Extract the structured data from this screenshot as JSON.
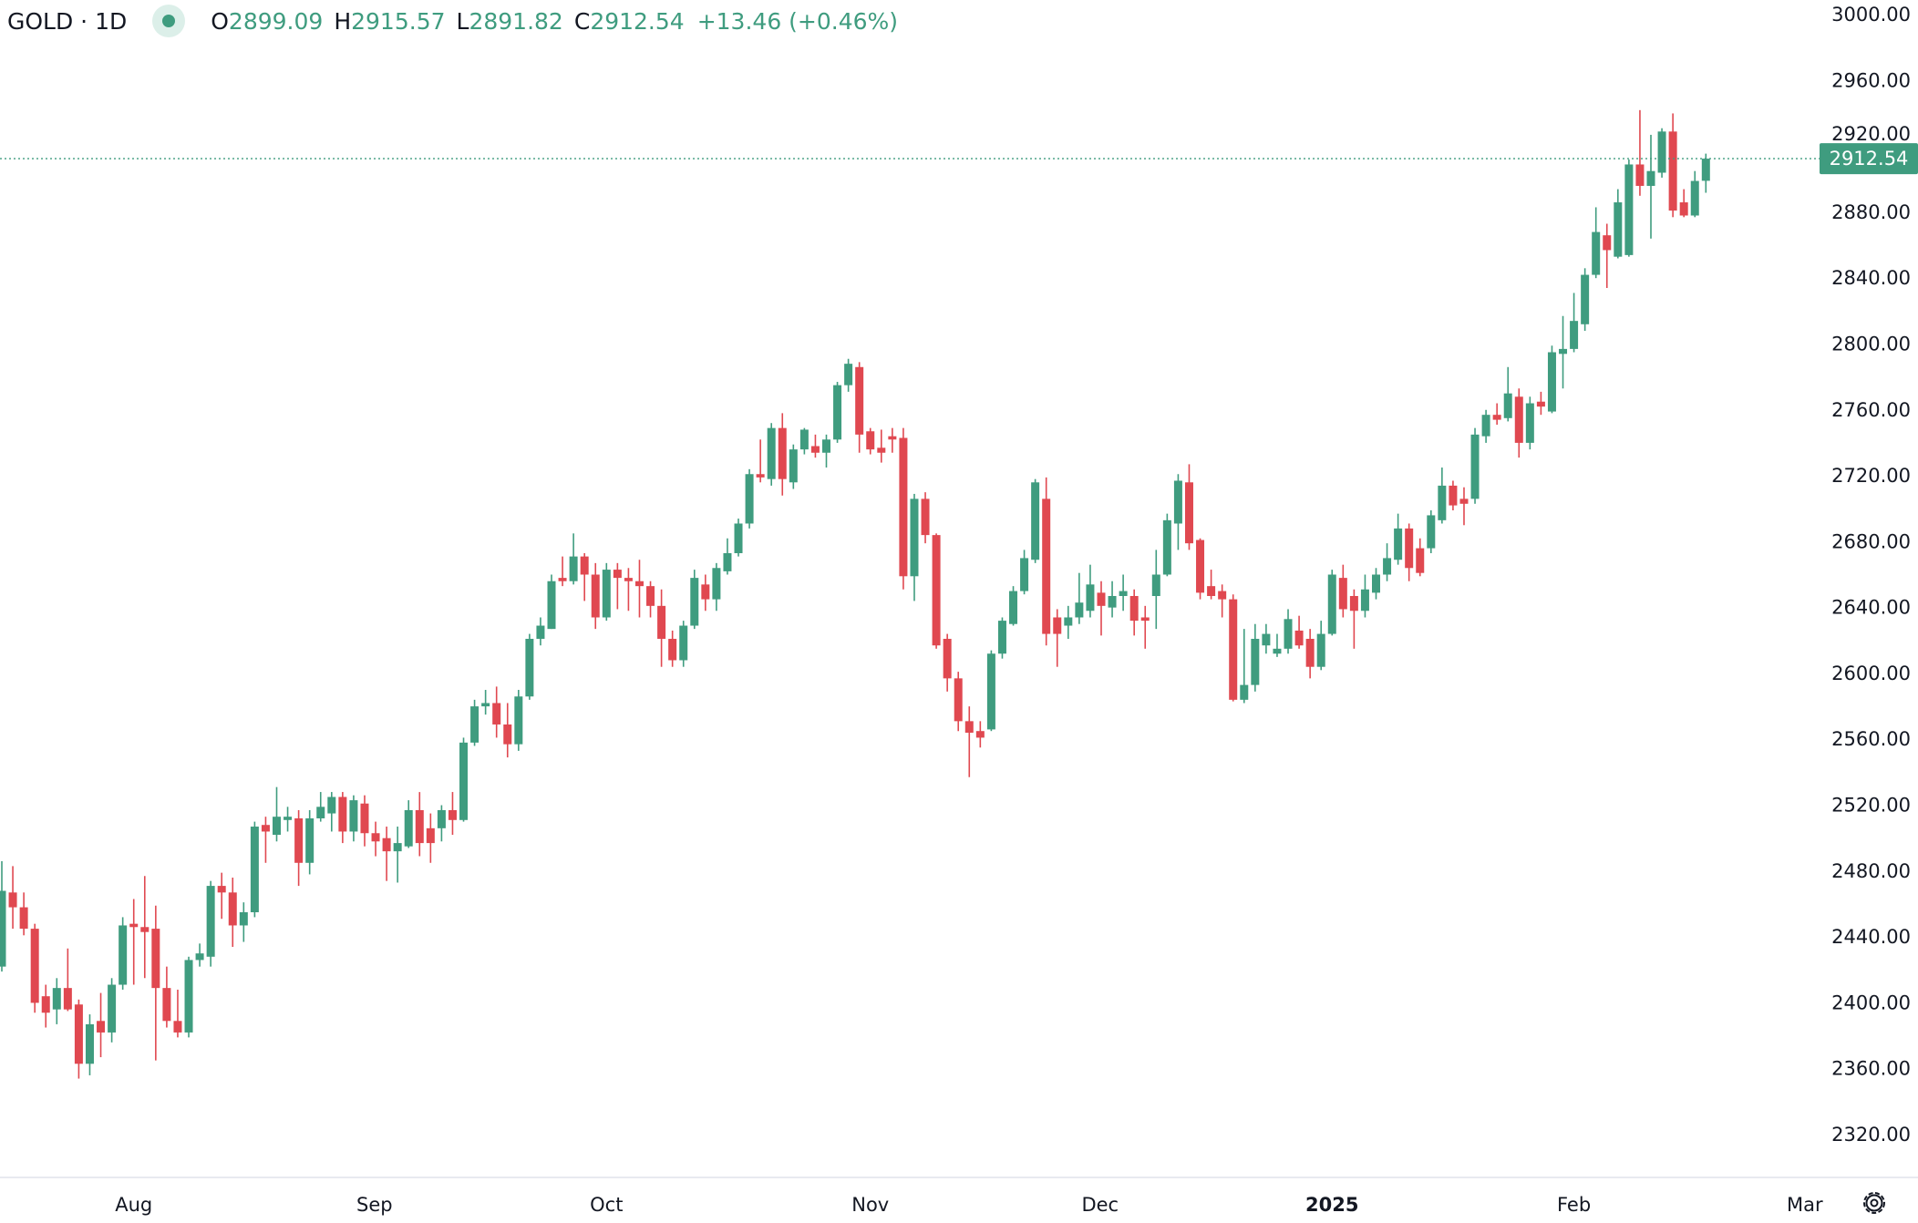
{
  "header": {
    "symbol": "GOLD · 1D",
    "open_label": "O",
    "open": "2899.09",
    "high_label": "H",
    "high": "2915.57",
    "low_label": "L",
    "low": "2891.82",
    "close_label": "C",
    "close": "2912.54",
    "change": "+13.46 (+0.46%)",
    "status_icon": "market-open-dot-icon"
  },
  "colors": {
    "up": "#3f9c7f",
    "down": "#e04850",
    "last_price_bg": "#3f9c7f",
    "grid_text": "#131722"
  },
  "settings_icon": "settings-icon",
  "chart_data": {
    "type": "candlestick",
    "title": "",
    "ylim": [
      2300,
      3010
    ],
    "grid": false,
    "y_ticks": [
      "2320.00",
      "2360.00",
      "2400.00",
      "2440.00",
      "2480.00",
      "2520.00",
      "2560.00",
      "2600.00",
      "2640.00",
      "2680.00",
      "2720.00",
      "2760.00",
      "2800.00",
      "2840.00",
      "2880.00",
      "2920.00",
      "2960.00",
      "3000.00"
    ],
    "x_ticks": [
      "Aug",
      "Sep",
      "Oct",
      "Nov",
      "Dec",
      "2025",
      "Feb",
      "Mar"
    ],
    "last_price": "2912.54",
    "ohlc_fields": [
      "open",
      "high",
      "low",
      "close"
    ],
    "candles": [
      [
        2422,
        2486,
        2419,
        2468
      ],
      [
        2467,
        2483,
        2445,
        2458
      ],
      [
        2458,
        2467,
        2441,
        2445
      ],
      [
        2445,
        2448,
        2394,
        2400
      ],
      [
        2404,
        2411,
        2385,
        2394
      ],
      [
        2396,
        2415,
        2387,
        2409
      ],
      [
        2409,
        2433,
        2395,
        2396
      ],
      [
        2399,
        2402,
        2354,
        2363
      ],
      [
        2363,
        2393,
        2356,
        2387
      ],
      [
        2389,
        2406,
        2367,
        2382
      ],
      [
        2382,
        2415,
        2376,
        2411
      ],
      [
        2411,
        2452,
        2408,
        2447
      ],
      [
        2448,
        2463,
        2411,
        2446
      ],
      [
        2446,
        2477,
        2415,
        2443
      ],
      [
        2445,
        2459,
        2365,
        2409
      ],
      [
        2409,
        2422,
        2385,
        2389
      ],
      [
        2389,
        2408,
        2379,
        2382
      ],
      [
        2382,
        2428,
        2379,
        2426
      ],
      [
        2426,
        2436,
        2422,
        2430
      ],
      [
        2428,
        2474,
        2422,
        2471
      ],
      [
        2471,
        2479,
        2451,
        2467
      ],
      [
        2467,
        2476,
        2434,
        2447
      ],
      [
        2447,
        2461,
        2437,
        2455
      ],
      [
        2455,
        2510,
        2452,
        2507
      ],
      [
        2508,
        2513,
        2485,
        2504
      ],
      [
        2502,
        2531,
        2498,
        2513
      ],
      [
        2511,
        2519,
        2504,
        2513
      ],
      [
        2512,
        2517,
        2471,
        2485
      ],
      [
        2485,
        2517,
        2478,
        2512
      ],
      [
        2512,
        2528,
        2510,
        2519
      ],
      [
        2515,
        2528,
        2504,
        2525
      ],
      [
        2525,
        2528,
        2497,
        2504
      ],
      [
        2504,
        2526,
        2498,
        2523
      ],
      [
        2521,
        2526,
        2495,
        2503
      ],
      [
        2503,
        2510,
        2489,
        2498
      ],
      [
        2500,
        2507,
        2474,
        2492
      ],
      [
        2492,
        2507,
        2473,
        2497
      ],
      [
        2495,
        2523,
        2494,
        2517
      ],
      [
        2517,
        2528,
        2489,
        2497
      ],
      [
        2506,
        2515,
        2485,
        2497
      ],
      [
        2506,
        2520,
        2498,
        2517
      ],
      [
        2517,
        2528,
        2502,
        2511
      ],
      [
        2511,
        2561,
        2510,
        2558
      ],
      [
        2558,
        2584,
        2556,
        2580
      ],
      [
        2580,
        2590,
        2575,
        2582
      ],
      [
        2582,
        2592,
        2561,
        2569
      ],
      [
        2569,
        2582,
        2549,
        2557
      ],
      [
        2557,
        2590,
        2553,
        2586
      ],
      [
        2586,
        2624,
        2584,
        2621
      ],
      [
        2621,
        2634,
        2617,
        2629
      ],
      [
        2627,
        2660,
        2627,
        2656
      ],
      [
        2658,
        2671,
        2653,
        2656
      ],
      [
        2656,
        2685,
        2654,
        2671
      ],
      [
        2671,
        2673,
        2644,
        2660
      ],
      [
        2660,
        2667,
        2627,
        2634
      ],
      [
        2634,
        2667,
        2632,
        2663
      ],
      [
        2663,
        2667,
        2639,
        2658
      ],
      [
        2658,
        2664,
        2638,
        2656
      ],
      [
        2656,
        2669,
        2634,
        2653
      ],
      [
        2653,
        2656,
        2634,
        2641
      ],
      [
        2641,
        2651,
        2604,
        2621
      ],
      [
        2621,
        2626,
        2604,
        2608
      ],
      [
        2608,
        2632,
        2604,
        2629
      ],
      [
        2629,
        2663,
        2627,
        2658
      ],
      [
        2654,
        2660,
        2638,
        2645
      ],
      [
        2645,
        2667,
        2638,
        2664
      ],
      [
        2662,
        2682,
        2660,
        2673
      ],
      [
        2673,
        2694,
        2671,
        2691
      ],
      [
        2691,
        2724,
        2688,
        2721
      ],
      [
        2721,
        2742,
        2716,
        2719
      ],
      [
        2718,
        2752,
        2714,
        2749
      ],
      [
        2749,
        2758,
        2708,
        2718
      ],
      [
        2716,
        2739,
        2712,
        2736
      ],
      [
        2736,
        2749,
        2733,
        2748
      ],
      [
        2738,
        2745,
        2731,
        2734
      ],
      [
        2734,
        2745,
        2725,
        2742
      ],
      [
        2742,
        2777,
        2740,
        2775
      ],
      [
        2775,
        2791,
        2771,
        2788
      ],
      [
        2786,
        2789,
        2734,
        2745
      ],
      [
        2747,
        2749,
        2733,
        2736
      ],
      [
        2737,
        2748,
        2728,
        2734
      ],
      [
        2744,
        2749,
        2734,
        2742
      ],
      [
        2743,
        2749,
        2651,
        2659
      ],
      [
        2659,
        2709,
        2644,
        2706
      ],
      [
        2706,
        2710,
        2679,
        2684
      ],
      [
        2684,
        2685,
        2615,
        2617
      ],
      [
        2621,
        2624,
        2589,
        2597
      ],
      [
        2597,
        2601,
        2565,
        2571
      ],
      [
        2571,
        2580,
        2537,
        2564
      ],
      [
        2565,
        2571,
        2555,
        2561
      ],
      [
        2566,
        2614,
        2565,
        2612
      ],
      [
        2612,
        2634,
        2609,
        2632
      ],
      [
        2630,
        2653,
        2629,
        2650
      ],
      [
        2650,
        2675,
        2648,
        2670
      ],
      [
        2669,
        2718,
        2667,
        2716
      ],
      [
        2706,
        2719,
        2617,
        2624
      ],
      [
        2634,
        2639,
        2604,
        2624
      ],
      [
        2629,
        2641,
        2621,
        2634
      ],
      [
        2634,
        2661,
        2630,
        2643
      ],
      [
        2638,
        2666,
        2634,
        2654
      ],
      [
        2649,
        2656,
        2623,
        2641
      ],
      [
        2640,
        2656,
        2634,
        2647
      ],
      [
        2647,
        2660,
        2638,
        2650
      ],
      [
        2647,
        2651,
        2623,
        2632
      ],
      [
        2634,
        2641,
        2615,
        2632
      ],
      [
        2647,
        2675,
        2627,
        2660
      ],
      [
        2660,
        2697,
        2659,
        2693
      ],
      [
        2691,
        2721,
        2675,
        2717
      ],
      [
        2716,
        2727,
        2675,
        2679
      ],
      [
        2681,
        2682,
        2645,
        2649
      ],
      [
        2653,
        2663,
        2645,
        2647
      ],
      [
        2650,
        2654,
        2634,
        2645
      ],
      [
        2645,
        2648,
        2583,
        2584
      ],
      [
        2584,
        2627,
        2582,
        2593
      ],
      [
        2593,
        2630,
        2589,
        2621
      ],
      [
        2617,
        2630,
        2612,
        2624
      ],
      [
        2612,
        2624,
        2610,
        2615
      ],
      [
        2615,
        2639,
        2612,
        2633
      ],
      [
        2626,
        2635,
        2615,
        2617
      ],
      [
        2621,
        2627,
        2597,
        2604
      ],
      [
        2604,
        2632,
        2602,
        2624
      ],
      [
        2624,
        2663,
        2623,
        2660
      ],
      [
        2658,
        2666,
        2634,
        2639
      ],
      [
        2647,
        2651,
        2615,
        2638
      ],
      [
        2638,
        2660,
        2634,
        2651
      ],
      [
        2649,
        2664,
        2645,
        2660
      ],
      [
        2660,
        2679,
        2656,
        2670
      ],
      [
        2669,
        2697,
        2666,
        2688
      ],
      [
        2688,
        2691,
        2656,
        2664
      ],
      [
        2676,
        2682,
        2659,
        2661
      ],
      [
        2676,
        2699,
        2673,
        2696
      ],
      [
        2693,
        2725,
        2691,
        2714
      ],
      [
        2714,
        2717,
        2699,
        2702
      ],
      [
        2706,
        2713,
        2690,
        2703
      ],
      [
        2706,
        2749,
        2703,
        2745
      ],
      [
        2744,
        2760,
        2740,
        2757
      ],
      [
        2757,
        2764,
        2751,
        2754
      ],
      [
        2755,
        2786,
        2753,
        2770
      ],
      [
        2768,
        2773,
        2731,
        2740
      ],
      [
        2740,
        2768,
        2736,
        2764
      ],
      [
        2765,
        2771,
        2757,
        2762
      ],
      [
        2759,
        2799,
        2758,
        2795
      ],
      [
        2794,
        2817,
        2773,
        2797
      ],
      [
        2797,
        2831,
        2795,
        2814
      ],
      [
        2812,
        2846,
        2808,
        2842
      ],
      [
        2842,
        2883,
        2840,
        2868
      ],
      [
        2866,
        2873,
        2834,
        2857
      ],
      [
        2853,
        2894,
        2852,
        2886
      ],
      [
        2854,
        2912,
        2853,
        2909
      ],
      [
        2909,
        2942,
        2890,
        2896
      ],
      [
        2896,
        2927,
        2864,
        2905
      ],
      [
        2904,
        2931,
        2901,
        2929
      ],
      [
        2929,
        2940,
        2877,
        2881
      ],
      [
        2886,
        2894,
        2877,
        2878
      ],
      [
        2878,
        2905,
        2877,
        2899
      ],
      [
        2899.09,
        2915.57,
        2891.82,
        2912.54
      ]
    ]
  }
}
